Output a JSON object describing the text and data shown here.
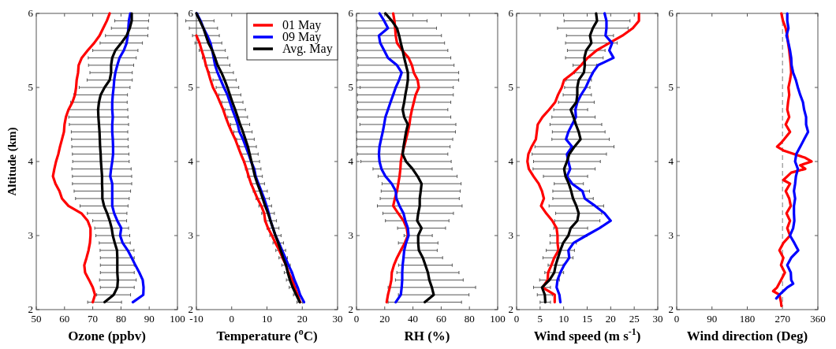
{
  "chart_data": [
    {
      "type": "line",
      "xlabel": "Ozone (ppbv)",
      "ylabel": "Altitude (km)",
      "xlim": [
        50,
        100
      ],
      "xticks": [
        50,
        60,
        70,
        80,
        90,
        100
      ],
      "ylim": [
        2,
        6
      ],
      "yticks": [
        2,
        3,
        4,
        5,
        6
      ],
      "series": [
        {
          "color": "#ff0000",
          "values": [
            2.1,
            2.2,
            2.3,
            2.4,
            2.5,
            2.6,
            2.7,
            2.8,
            2.9,
            3.0,
            3.1,
            3.2,
            3.3,
            3.4,
            3.5,
            3.6,
            3.7,
            3.8,
            3.9,
            4.0,
            4.1,
            4.2,
            4.3,
            4.4,
            4.5,
            4.6,
            4.7,
            4.8,
            4.9,
            5.0,
            5.1,
            5.2,
            5.3,
            5.4,
            5.5,
            5.6,
            5.7,
            5.8,
            5.9,
            6.0
          ],
          "x": [
            70,
            70.8,
            70,
            68.7,
            67.3,
            67,
            67.8,
            68.5,
            69,
            69.2,
            69.2,
            68.2,
            66,
            61.4,
            59.1,
            58.2,
            56.8,
            55.9,
            56.4,
            57,
            57.8,
            58.4,
            59.1,
            59.8,
            60,
            60.5,
            61.4,
            62.8,
            63.7,
            64.1,
            64.3,
            64.8,
            65,
            66.1,
            68.2,
            70.5,
            72.4,
            73.7,
            75,
            76
          ]
        },
        {
          "color": "#0000ff",
          "values": [
            2.1,
            2.2,
            2.3,
            2.4,
            2.5,
            2.6,
            2.7,
            2.8,
            2.9,
            3.0,
            3.1,
            3.2,
            3.3,
            3.4,
            3.5,
            3.6,
            3.7,
            3.8,
            3.9,
            4.0,
            4.1,
            4.2,
            4.3,
            4.4,
            4.5,
            4.6,
            4.7,
            4.8,
            4.9,
            5.0,
            5.1,
            5.2,
            5.3,
            5.4,
            5.5,
            5.6,
            5.7,
            5.8,
            5.9,
            6.0
          ],
          "x": [
            84.2,
            87.9,
            88,
            87.7,
            86.5,
            85.1,
            83.8,
            82.4,
            80.6,
            79.7,
            80.1,
            78.7,
            77.6,
            76.9,
            76.9,
            76.9,
            76.9,
            76.2,
            76.5,
            76.9,
            77.2,
            77.2,
            77.1,
            76.9,
            76.9,
            77.1,
            76.9,
            76.9,
            77.1,
            77.4,
            77.6,
            78,
            78.7,
            79.5,
            81,
            82,
            82.4,
            82.6,
            82.8,
            83.3
          ]
        },
        {
          "color": "#000000",
          "values": [
            2.1,
            2.2,
            2.3,
            2.4,
            2.5,
            2.6,
            2.7,
            2.8,
            2.9,
            3.0,
            3.1,
            3.2,
            3.3,
            3.4,
            3.5,
            3.6,
            3.7,
            3.8,
            3.9,
            4.0,
            4.1,
            4.2,
            4.3,
            4.4,
            4.5,
            4.6,
            4.7,
            4.8,
            4.9,
            5.0,
            5.1,
            5.2,
            5.3,
            5.4,
            5.5,
            5.6,
            5.7,
            5.8,
            5.9,
            6.0
          ],
          "x": [
            74.2,
            77.4,
            78.7,
            78.9,
            78.7,
            78.7,
            78.7,
            78.6,
            77.8,
            77.1,
            76.7,
            76,
            75.1,
            74,
            73.4,
            73.4,
            73.3,
            73.3,
            73.1,
            72.9,
            72.8,
            72.6,
            72.5,
            72.4,
            72.2,
            72,
            71.9,
            72.2,
            72.8,
            74.2,
            76,
            76.5,
            76.5,
            76.9,
            78,
            80.1,
            82,
            83.1,
            83.8,
            83.8
          ],
          "xerrors": [
            6,
            6,
            6,
            6.5,
            6,
            6,
            6,
            6,
            5.5,
            6,
            6,
            6,
            7,
            8.5,
            9.5,
            10,
            10.5,
            10.5,
            10.5,
            10,
            10,
            10,
            10,
            10,
            10.5,
            10.5,
            10.5,
            10,
            9.5,
            9,
            8,
            7.5,
            8,
            8.5,
            8,
            7.5,
            7.5,
            6.5,
            6,
            null
          ]
        }
      ]
    },
    {
      "type": "line",
      "xlabel": "Temperature ($^{o}$C)",
      "xlim": [
        -10,
        30
      ],
      "xticks": [
        -10,
        0,
        10,
        20,
        30
      ],
      "ylim": [
        2,
        6
      ],
      "yticks": [
        2,
        3,
        4,
        5,
        6
      ],
      "legend": "top right",
      "series": [
        {
          "name": "01 May",
          "color": "#ff0000",
          "values": [
            2.1,
            2.2,
            2.3,
            2.4,
            2.5,
            2.6,
            2.7,
            2.8,
            2.9,
            3.0,
            3.1,
            3.2,
            3.3,
            3.4,
            3.5,
            3.6,
            3.7,
            3.8,
            3.9,
            4.0,
            4.1,
            4.2,
            4.3,
            4.4,
            4.5,
            4.6,
            4.7,
            4.8,
            4.9,
            5.0,
            5.1,
            5.2,
            5.3,
            5.4,
            5.5,
            5.6,
            5.7
          ],
          "x": [
            19.4,
            18.7,
            17.9,
            17.2,
            16.1,
            15.4,
            14.4,
            13.5,
            12.4,
            11.4,
            10.3,
            9.5,
            9.2,
            8.4,
            7.3,
            6.4,
            5.5,
            4.8,
            4.2,
            3.5,
            2.6,
            1.8,
            1,
            0,
            -0.9,
            -1.7,
            -2.4,
            -3.3,
            -4.2,
            -5.3,
            -6,
            -6.6,
            -7.3,
            -7.8,
            -8.5,
            -9.1,
            -10
          ]
        },
        {
          "name": "09 May",
          "color": "#0000ff",
          "values": [
            2.1,
            2.2,
            2.3,
            2.4,
            2.5,
            2.6,
            2.7,
            2.8,
            2.9,
            3.0,
            3.1,
            3.2,
            3.3,
            3.4,
            3.5,
            3.6,
            3.7,
            3.8,
            3.9,
            4.0,
            4.1,
            4.2,
            4.3,
            4.4,
            4.5,
            4.6,
            4.7,
            4.8,
            4.9,
            5.0,
            5.1,
            5.2,
            5.3,
            5.4,
            5.5,
            5.6,
            5.7,
            5.8,
            5.9,
            6.0
          ],
          "x": [
            20.5,
            19.4,
            18.7,
            17.8,
            17.1,
            16.1,
            15.2,
            14.3,
            13.4,
            12.4,
            11.7,
            11,
            10.5,
            9.9,
            9.2,
            8.4,
            7.6,
            6.8,
            6.4,
            5.5,
            4.8,
            4,
            3.2,
            2.2,
            1.7,
            1,
            0.2,
            -0.5,
            -1.2,
            -2.2,
            -3.1,
            -4,
            -4.7,
            -5.1,
            -5.5,
            -6,
            -6.9,
            -8,
            -8.8,
            -9.9
          ]
        },
        {
          "name": "Avg. May",
          "color": "#000000",
          "values": [
            2.1,
            2.2,
            2.3,
            2.4,
            2.5,
            2.6,
            2.7,
            2.8,
            2.9,
            3.0,
            3.1,
            3.2,
            3.3,
            3.4,
            3.5,
            3.6,
            3.7,
            3.8,
            3.9,
            4.0,
            4.1,
            4.2,
            4.3,
            4.4,
            4.5,
            4.6,
            4.7,
            4.8,
            4.9,
            5.0,
            5.1,
            5.2,
            5.3,
            5.4,
            5.5,
            5.6,
            5.7,
            5.8,
            5.9,
            6.0
          ],
          "x": [
            19.3,
            18.3,
            17.3,
            16.5,
            15.9,
            15.4,
            14.6,
            13.9,
            13.2,
            12.4,
            11.7,
            11,
            10.3,
            9.5,
            8.8,
            8.1,
            7.3,
            6.6,
            6.1,
            5.6,
            5.1,
            4.6,
            3.9,
            3.2,
            2.4,
            1.7,
            1,
            0.2,
            -0.5,
            -1.2,
            -2,
            -2.9,
            -4,
            -4.7,
            -5.5,
            -6.6,
            -7.3,
            -8,
            -9,
            -10
          ],
          "xerrors": [
            0.8,
            0.8,
            1,
            1,
            1,
            1.2,
            1.2,
            1.4,
            1.5,
            1.6,
            1.7,
            1.7,
            1.8,
            1.8,
            1.9,
            2,
            2,
            2.1,
            2.2,
            2.3,
            2.4,
            2.4,
            2.5,
            2.6,
            2.7,
            2.8,
            2.9,
            3,
            3.1,
            3.2,
            3.3,
            3.4,
            3.5,
            3.6,
            3.7,
            3.8,
            3.8,
            4,
            4,
            null
          ]
        }
      ]
    },
    {
      "type": "line",
      "xlabel": "RH (%)",
      "xlim": [
        0,
        100
      ],
      "xticks": [
        0,
        20,
        40,
        60,
        80,
        100
      ],
      "ylim": [
        2,
        6
      ],
      "yticks": [
        2,
        3,
        4,
        5,
        6
      ],
      "series": [
        {
          "color": "#ff0000",
          "values": [
            2.1,
            2.2,
            2.3,
            2.4,
            2.5,
            2.6,
            2.7,
            2.8,
            2.9,
            3.0,
            3.1,
            3.2,
            3.3,
            3.4,
            3.5,
            3.6,
            3.7,
            3.8,
            3.9,
            4.0,
            4.1,
            4.2,
            4.3,
            4.4,
            4.5,
            4.6,
            4.7,
            4.8,
            4.9,
            5.0,
            5.1,
            5.2,
            5.3,
            5.4,
            5.5,
            5.6,
            5.7,
            5.8,
            5.9,
            6.0
          ],
          "x": [
            21.4,
            22.3,
            23.6,
            24.7,
            25,
            26.5,
            28.7,
            31.4,
            34.2,
            36.4,
            35.6,
            33.3,
            29.6,
            26,
            27.2,
            28.7,
            29.6,
            30.5,
            31.1,
            31.4,
            32.4,
            33.8,
            35.1,
            36.4,
            37.5,
            38.2,
            39.3,
            40.6,
            41.9,
            44.2,
            43.3,
            40.6,
            39.3,
            36.9,
            32.4,
            28.7,
            27.8,
            27.4,
            26.9,
            26
          ]
        },
        {
          "color": "#0000ff",
          "values": [
            2.1,
            2.2,
            2.3,
            2.4,
            2.5,
            2.6,
            2.7,
            2.8,
            2.9,
            3.0,
            3.1,
            3.2,
            3.3,
            3.4,
            3.5,
            3.6,
            3.7,
            3.8,
            3.9,
            4.0,
            4.1,
            4.2,
            4.3,
            4.4,
            4.5,
            4.6,
            4.7,
            4.8,
            4.9,
            5.0,
            5.1,
            5.2,
            5.3,
            5.4,
            5.5,
            5.6,
            5.7,
            5.8,
            5.9,
            6.0
          ],
          "x": [
            27.8,
            31.4,
            32,
            32.4,
            32.4,
            32.7,
            33.3,
            33.8,
            35.1,
            36.9,
            36.4,
            34.6,
            33.3,
            30.5,
            28.3,
            27.8,
            25,
            20.5,
            17.7,
            16.3,
            15.9,
            16.3,
            17.4,
            18.6,
            19.6,
            20.5,
            22.3,
            24.1,
            26,
            27.8,
            30.2,
            32,
            28.7,
            22.3,
            19.6,
            16.8,
            15.9,
            22.3,
            19.6,
            16.3
          ]
        },
        {
          "color": "#000000",
          "values": [
            2.1,
            2.2,
            2.3,
            2.4,
            2.5,
            2.6,
            2.7,
            2.8,
            2.9,
            3.0,
            3.1,
            3.2,
            3.3,
            3.4,
            3.5,
            3.6,
            3.7,
            3.8,
            3.9,
            4.0,
            4.1,
            4.2,
            4.3,
            4.4,
            4.5,
            4.6,
            4.7,
            4.8,
            4.9,
            5.0,
            5.1,
            5.2,
            5.3,
            5.4,
            5.5,
            5.6,
            5.7,
            5.8,
            5.9,
            6.0
          ],
          "x": [
            48.4,
            54.7,
            53.4,
            51.6,
            50.6,
            48.8,
            47,
            44.2,
            43.7,
            43.7,
            46.1,
            43,
            43.7,
            44.8,
            44.8,
            45.5,
            46.1,
            43.3,
            39.7,
            35.1,
            32.7,
            33.3,
            34.2,
            35.1,
            36.4,
            33.8,
            32.7,
            33.8,
            34.6,
            35.6,
            36.4,
            36.4,
            35.1,
            33.8,
            32.7,
            31.4,
            30.2,
            28.7,
            25,
            20.5
          ],
          "xerrors": [
            26,
            25,
            31,
            24,
            22,
            19,
            14,
            13,
            14,
            10,
            17,
            22.5,
            25,
            30,
            28,
            28,
            28,
            28,
            28,
            32,
            32,
            33,
            34,
            35,
            34,
            33,
            32,
            33,
            34,
            33,
            36,
            36,
            34,
            33,
            32,
            31,
            30,
            28,
            25,
            null
          ]
        }
      ]
    },
    {
      "type": "line",
      "xlabel": "Wind speed (m s$^{-1}$)",
      "xlim": [
        0,
        30
      ],
      "xticks": [
        0,
        5,
        10,
        15,
        20,
        25,
        30
      ],
      "ylim": [
        2,
        6
      ],
      "yticks": [
        2,
        3,
        4,
        5,
        6
      ],
      "series": [
        {
          "color": "#ff0000",
          "values": [
            2.1,
            2.2,
            2.3,
            2.4,
            2.5,
            2.6,
            2.7,
            2.8,
            2.9,
            3.0,
            3.1,
            3.2,
            3.3,
            3.4,
            3.5,
            3.6,
            3.7,
            3.8,
            3.9,
            4.0,
            4.1,
            4.2,
            4.3,
            4.4,
            4.5,
            4.6,
            4.7,
            4.8,
            4.9,
            5.0,
            5.1,
            5.2,
            5.3,
            5.4,
            5.5,
            5.6,
            5.7,
            5.8,
            5.9,
            6.0
          ],
          "x": [
            8.1,
            8.1,
            5.5,
            6.6,
            6.7,
            7.4,
            8,
            8.9,
            8.7,
            8.7,
            8.5,
            7.6,
            6.3,
            5.2,
            5.8,
            5.4,
            4.7,
            3.6,
            2.6,
            2.3,
            2.5,
            3.2,
            4.1,
            4.3,
            4.5,
            5.5,
            6.9,
            8.2,
            8.8,
            9.6,
            10.1,
            12.1,
            13.7,
            15.1,
            17,
            19.7,
            22.5,
            24.7,
            26,
            26
          ]
        },
        {
          "color": "#0000ff",
          "values": [
            2.1,
            2.2,
            2.3,
            2.4,
            2.5,
            2.6,
            2.7,
            2.8,
            2.9,
            3.0,
            3.1,
            3.2,
            3.3,
            3.4,
            3.5,
            3.6,
            3.7,
            3.8,
            3.9,
            4.0,
            4.1,
            4.2,
            4.3,
            4.4,
            4.5,
            4.6,
            4.7,
            4.8,
            4.9,
            5.0,
            5.1,
            5.2,
            5.3,
            5.4,
            5.5,
            5.6,
            5.7,
            5.8,
            5.9,
            6.0
          ],
          "x": [
            9.3,
            9.1,
            8.5,
            8.7,
            9.3,
            10.1,
            11.2,
            11,
            12.1,
            14.8,
            17.6,
            20,
            18.7,
            16.7,
            14.5,
            14,
            11.8,
            10.7,
            11.4,
            11,
            10.7,
            11.8,
            10.5,
            11,
            11.8,
            12.6,
            12.5,
            12.9,
            13.7,
            14.7,
            15.4,
            16.2,
            17.3,
            20.6,
            19.7,
            20.3,
            18.9,
            19.1,
            19.1,
            18.7
          ]
        },
        {
          "color": "#000000",
          "values": [
            2.1,
            2.2,
            2.3,
            2.4,
            2.5,
            2.6,
            2.7,
            2.8,
            2.9,
            3.0,
            3.1,
            3.2,
            3.3,
            3.4,
            3.5,
            3.6,
            3.7,
            3.8,
            3.9,
            4.0,
            4.1,
            4.2,
            4.3,
            4.4,
            4.5,
            4.6,
            4.7,
            4.8,
            4.9,
            5.0,
            5.1,
            5.2,
            5.3,
            5.4,
            5.5,
            5.6,
            5.7,
            5.8,
            5.9,
            6.0
          ],
          "x": [
            6.1,
            6,
            5.4,
            7,
            8,
            8.3,
            8.8,
            9.3,
            9.9,
            11,
            11.5,
            12.9,
            13.2,
            12.7,
            12,
            11.6,
            11.1,
            10.4,
            10.1,
            10.7,
            11.2,
            12.3,
            13.6,
            13.2,
            12.6,
            12.1,
            11.5,
            12.7,
            12.9,
            12.9,
            13.2,
            14.3,
            14.5,
            14.4,
            14.8,
            15.9,
            15.6,
            16.2,
            17.1,
            16.9
          ],
          "xerrors": [
            1.1,
            1.6,
            1.8,
            2.1,
            2,
            1.6,
            3.2,
            3,
            2.8,
            3.9,
            3.6,
            4.8,
            4.9,
            5.8,
            4.3,
            3.9,
            3.1,
            4.7,
            6.6,
            7.1,
            7.9,
            8.4,
            6.1,
            5.6,
            5.5,
            4.6,
            3.6,
            3.8,
            3,
            2.7,
            2.7,
            2,
            2.5,
            4,
            4,
            5.5,
            5,
            7.5,
            7,
            null
          ]
        }
      ]
    },
    {
      "type": "line",
      "xlabel": "Wind direction (Deg)",
      "xlim": [
        0,
        360
      ],
      "xticks": [
        0,
        90,
        180,
        270,
        360
      ],
      "ylim": [
        2,
        6
      ],
      "yticks": [
        2,
        3,
        4,
        5,
        6
      ],
      "ref_lines": [
        {
          "axis": "x",
          "value": 270,
          "color": "#a6a6a6",
          "line_style": "dashed"
        }
      ],
      "series": [
        {
          "color": "#ff0000",
          "values": [
            2.05,
            2.1,
            2.2,
            2.25,
            2.3,
            2.4,
            2.5,
            2.6,
            2.7,
            2.8,
            2.9,
            3.0,
            3.1,
            3.2,
            3.3,
            3.4,
            3.5,
            3.6,
            3.7,
            3.75,
            3.8,
            3.85,
            3.9,
            3.95,
            4.0,
            4.05,
            4.1,
            4.15,
            4.2,
            4.25,
            4.3,
            4.4,
            4.5,
            4.6,
            4.7,
            4.8,
            4.9,
            5.0,
            5.1,
            5.2,
            5.3,
            5.4,
            5.5,
            5.6,
            5.7,
            5.8,
            5.9,
            6.0
          ],
          "x": [
            267,
            266,
            262,
            246,
            256,
            266,
            276,
            266,
            272,
            262,
            272,
            289,
            282,
            289,
            280,
            291,
            287,
            278,
            289,
            272,
            282,
            292,
            328,
            315,
            344,
            328,
            299,
            272,
            256,
            266,
            274,
            289,
            278,
            287,
            282,
            284,
            287,
            285,
            289,
            292,
            291,
            289,
            287,
            284,
            282,
            278,
            271,
            267
          ]
        },
        {
          "color": "#0000ff",
          "values": [
            2.15,
            2.2,
            2.25,
            2.3,
            2.35,
            2.4,
            2.5,
            2.6,
            2.7,
            2.8,
            2.9,
            3.0,
            3.1,
            3.2,
            3.3,
            3.4,
            3.5,
            3.6,
            3.7,
            3.8,
            3.9,
            4.0,
            4.1,
            4.2,
            4.3,
            4.4,
            4.5,
            4.6,
            4.7,
            4.8,
            4.9,
            5.0,
            5.1,
            5.2,
            5.3,
            5.4,
            5.5,
            5.6,
            5.7,
            5.8,
            5.9,
            6.0
          ],
          "x": [
            254,
            262,
            272,
            282,
            297,
            292,
            291,
            282,
            292,
            310,
            300,
            289,
            297,
            300,
            299,
            299,
            302,
            299,
            302,
            304,
            309,
            302,
            305,
            315,
            325,
            335,
            330,
            330,
            325,
            322,
            315,
            309,
            304,
            297,
            293,
            292,
            289,
            285,
            280,
            285,
            282,
            282
          ]
        }
      ]
    }
  ]
}
